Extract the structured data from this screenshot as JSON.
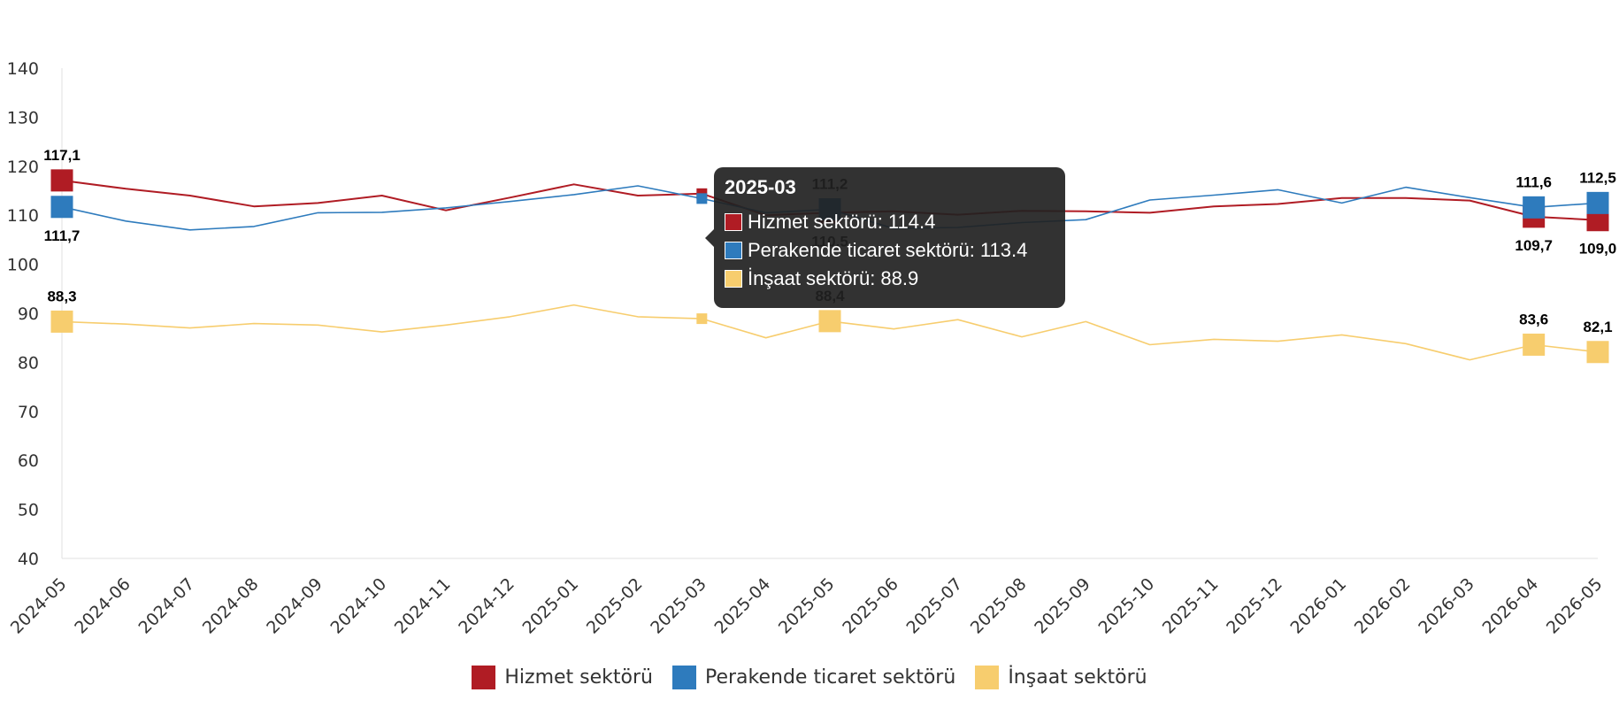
{
  "chart_data": {
    "type": "line",
    "title": "",
    "xlabel": "",
    "ylabel": "",
    "ylim": [
      40,
      140
    ],
    "yticks": [
      40,
      50,
      60,
      70,
      80,
      90,
      100,
      110,
      120,
      130,
      140
    ],
    "grid": false,
    "legend_position": "bottom",
    "categories": [
      "2024-05",
      "2024-06",
      "2024-07",
      "2024-08",
      "2024-09",
      "2024-10",
      "2024-11",
      "2024-12",
      "2025-01",
      "2025-02",
      "2025-03",
      "2025-04",
      "2025-05",
      "2025-06",
      "2025-07",
      "2025-08",
      "2025-09",
      "2025-10",
      "2025-11",
      "2025-12",
      "2026-01",
      "2026-02",
      "2026-03",
      "2026-04",
      "2026-05"
    ],
    "series": [
      {
        "name": "Hizmet sektörü",
        "color": "#b01c24",
        "values": [
          117.1,
          115.4,
          114.0,
          111.8,
          112.5,
          114.0,
          111.0,
          113.6,
          116.3,
          114.0,
          114.4,
          110.0,
          110.5,
          110.8,
          110.1,
          110.9,
          110.8,
          110.5,
          111.8,
          112.3,
          113.5,
          113.5,
          113.0,
          109.7,
          109.0
        ],
        "labels": [
          {
            "i": 0,
            "text": "117,1",
            "pos": "above"
          },
          {
            "i": 12,
            "text": "110,5",
            "pos": "below"
          },
          {
            "i": 23,
            "text": "109,7",
            "pos": "below"
          },
          {
            "i": 24,
            "text": "109,0",
            "pos": "below"
          }
        ],
        "markers": [
          0,
          12,
          23,
          24
        ]
      },
      {
        "name": "Perakende ticaret sektörü",
        "color": "#2e7bbd",
        "values": [
          111.7,
          108.8,
          107.0,
          107.7,
          110.5,
          110.6,
          111.5,
          112.8,
          114.2,
          116.0,
          113.4,
          110.5,
          111.2,
          107.3,
          107.5,
          108.5,
          109.1,
          113.1,
          114.1,
          115.2,
          112.5,
          115.7,
          113.6,
          111.6,
          112.5
        ],
        "labels": [
          {
            "i": 0,
            "text": "111,7",
            "pos": "below"
          },
          {
            "i": 12,
            "text": "111,2",
            "pos": "above"
          },
          {
            "i": 23,
            "text": "111,6",
            "pos": "above"
          },
          {
            "i": 24,
            "text": "112,5",
            "pos": "above"
          }
        ],
        "markers": [
          0,
          12,
          23,
          24
        ]
      },
      {
        "name": "İnşaat sektörü",
        "color": "#f7cd6e",
        "values": [
          88.3,
          87.8,
          87.0,
          87.9,
          87.6,
          86.2,
          87.6,
          89.3,
          91.7,
          89.3,
          88.9,
          85.0,
          88.4,
          86.8,
          88.7,
          85.2,
          88.3,
          83.6,
          84.7,
          84.3,
          85.6,
          83.8,
          80.5,
          83.6,
          82.1
        ],
        "labels": [
          {
            "i": 0,
            "text": "88,3",
            "pos": "above"
          },
          {
            "i": 12,
            "text": "88,4",
            "pos": "above"
          },
          {
            "i": 23,
            "text": "83,6",
            "pos": "above"
          },
          {
            "i": 24,
            "text": "82,1",
            "pos": "above"
          }
        ],
        "markers": [
          0,
          12,
          23,
          24
        ]
      }
    ]
  },
  "tooltip": {
    "title": "2025-03",
    "index": 10,
    "rows": [
      {
        "text": "Hizmet sektörü: 114.4",
        "color": "#b01c24"
      },
      {
        "text": "Perakende ticaret sektörü: 113.4",
        "color": "#2e7bbd"
      },
      {
        "text": "İnşaat sektörü: 88.9",
        "color": "#f7cd6e"
      }
    ]
  }
}
